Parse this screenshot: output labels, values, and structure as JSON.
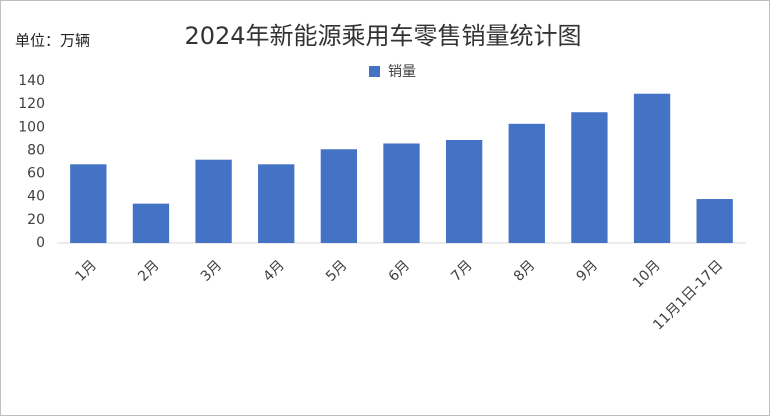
{
  "chart_data": {
    "type": "bar",
    "title": "2024年新能源乘用车零售销量统计图",
    "unit_label": "单位：万辆",
    "categories": [
      "1月",
      "2月",
      "3月",
      "4月",
      "5月",
      "6月",
      "7月",
      "8月",
      "9月",
      "10月",
      "11月1日-17日"
    ],
    "series": [
      {
        "name": "销量",
        "color": "#4472c4",
        "values": [
          68,
          34,
          72,
          68,
          81,
          86,
          89,
          103,
          113,
          129,
          38
        ]
      }
    ],
    "ylim": [
      0,
      140
    ],
    "yticks": [
      0,
      20,
      40,
      60,
      80,
      100,
      120,
      140
    ],
    "grid": false,
    "legend": "top"
  }
}
